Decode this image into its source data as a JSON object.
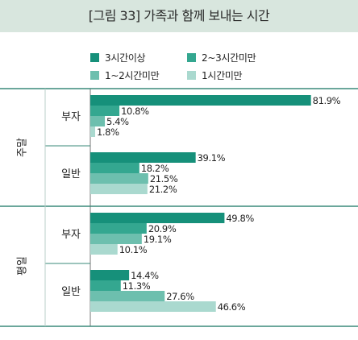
{
  "title": "[그림 33] 가족과 함께 보내는 시간",
  "colors": {
    "header_bg": "#d8e6de",
    "series": [
      "#16907a",
      "#34a790",
      "#6dbfae",
      "#aad9cf"
    ],
    "divider": "#3a8a7a"
  },
  "chart_data": {
    "type": "bar",
    "orientation": "horizontal",
    "title": "[그림 33] 가족과 함께 보내는 시간",
    "legend_position": "top",
    "value_suffix": "%",
    "xlim": [
      0,
      100
    ],
    "series": [
      {
        "name": "3시간이상",
        "values": [
          81.9,
          39.1,
          49.8,
          14.4
        ]
      },
      {
        "name": "2~3시간미만",
        "values": [
          10.8,
          18.2,
          20.9,
          11.3
        ]
      },
      {
        "name": "1~2시간미만",
        "values": [
          5.4,
          21.5,
          19.1,
          27.6
        ]
      },
      {
        "name": "1시간미만",
        "values": [
          1.8,
          21.2,
          10.1,
          46.6
        ]
      }
    ],
    "groups": [
      {
        "label": "주말",
        "categories": [
          "부자",
          "일반"
        ]
      },
      {
        "label": "평일",
        "categories": [
          "부자",
          "일반"
        ]
      }
    ],
    "categories": [
      "부자",
      "일반",
      "부자",
      "일반"
    ]
  }
}
